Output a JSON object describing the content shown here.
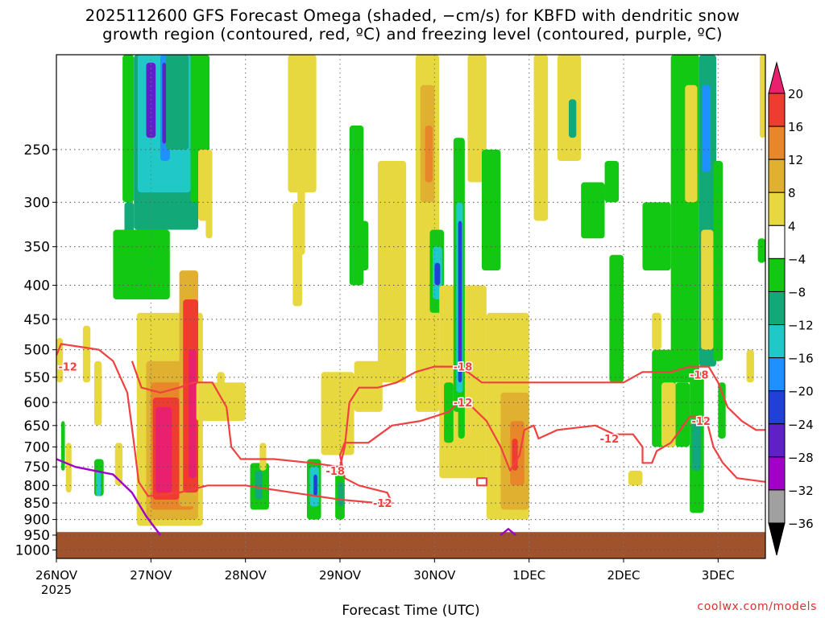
{
  "title": {
    "line1": "2025112600 GFS Forecast Omega (shaded, −cm/s) for KBFD with dendritic snow",
    "line2": "growth region (contoured, red, ºC) and freezing level (contoured, purple, ºC)"
  },
  "credit": "coolwx.com/models",
  "colors": {
    "ground": "#a0522d",
    "dgz_line": "#f04040",
    "freezing_line": "#a000c8",
    "grid": "#555555"
  },
  "chart_data": {
    "type": "heatmap",
    "xlabel": "Forecast Time (UTC)",
    "ylabel": "",
    "xlim_days_from_26nov": [
      0,
      7.5
    ],
    "ylim_hpa": [
      180,
      1030
    ],
    "y_ticks": [
      "250",
      "300",
      "350",
      "400",
      "450",
      "500",
      "550",
      "600",
      "650",
      "700",
      "750",
      "800",
      "850",
      "900",
      "950",
      "1000"
    ],
    "x_ticks": [
      {
        "label": "26NOV",
        "day": 0,
        "sub": "2025"
      },
      {
        "label": "27NOV",
        "day": 1
      },
      {
        "label": "28NOV",
        "day": 2
      },
      {
        "label": "29NOV",
        "day": 3
      },
      {
        "label": "30NOV",
        "day": 4
      },
      {
        "label": "1DEC",
        "day": 5
      },
      {
        "label": "2DEC",
        "day": 6
      },
      {
        "label": "3DEC",
        "day": 7
      }
    ],
    "colorbar": {
      "levels": [
        "20",
        "16",
        "12",
        "8",
        "4",
        "−4",
        "−8",
        "−12",
        "−16",
        "−20",
        "−24",
        "−28",
        "−32",
        "−36"
      ],
      "colors": [
        "#e8206e",
        "#ee3c30",
        "#e8872a",
        "#e0b030",
        "#e8d840",
        "#ffffff",
        "#12c812",
        "#12a878",
        "#20c8c8",
        "#1e90ff",
        "#2040d8",
        "#6020c8",
        "#a000c8",
        "#a0a0a0",
        "#000000"
      ]
    },
    "ground_level_hpa": 940,
    "omega_cells": [
      {
        "x0": 0.0,
        "x1": 0.07,
        "p0": 480,
        "p1": 560,
        "color": "#e8d840"
      },
      {
        "x0": 0.05,
        "x1": 0.09,
        "p0": 640,
        "p1": 760,
        "color": "#12c812"
      },
      {
        "x0": 0.1,
        "x1": 0.16,
        "p0": 690,
        "p1": 820,
        "color": "#e8d840"
      },
      {
        "x0": 0.28,
        "x1": 0.36,
        "p0": 460,
        "p1": 560,
        "color": "#e8d840"
      },
      {
        "x0": 0.4,
        "x1": 0.5,
        "p0": 730,
        "p1": 830,
        "color": "#12c812"
      },
      {
        "x0": 0.42,
        "x1": 0.47,
        "p0": 760,
        "p1": 830,
        "color": "#20c8c8"
      },
      {
        "x0": 0.4,
        "x1": 0.48,
        "p0": 520,
        "p1": 650,
        "color": "#e8d840"
      },
      {
        "x0": 0.62,
        "x1": 0.7,
        "p0": 690,
        "p1": 800,
        "color": "#e8d840"
      },
      {
        "x0": 0.7,
        "x1": 0.82,
        "p0": 180,
        "p1": 300,
        "color": "#12c812"
      },
      {
        "x0": 0.72,
        "x1": 0.82,
        "p0": 300,
        "p1": 350,
        "color": "#12a878"
      },
      {
        "x0": 0.82,
        "x1": 1.5,
        "p0": 180,
        "p1": 330,
        "color": "#12a878"
      },
      {
        "x0": 0.86,
        "x1": 1.42,
        "p0": 180,
        "p1": 290,
        "color": "#20c8c8"
      },
      {
        "x0": 0.95,
        "x1": 1.05,
        "p0": 185,
        "p1": 240,
        "color": "#6020c8"
      },
      {
        "x0": 1.1,
        "x1": 1.2,
        "p0": 180,
        "p1": 260,
        "color": "#1e90ff"
      },
      {
        "x0": 1.12,
        "x1": 1.16,
        "p0": 185,
        "p1": 245,
        "color": "#6020c8"
      },
      {
        "x0": 1.16,
        "x1": 1.4,
        "p0": 180,
        "p1": 250,
        "color": "#12a878"
      },
      {
        "x0": 0.6,
        "x1": 1.2,
        "p0": 330,
        "p1": 420,
        "color": "#12c812"
      },
      {
        "x0": 1.42,
        "x1": 1.62,
        "p0": 180,
        "p1": 300,
        "color": "#12c812"
      },
      {
        "x0": 1.5,
        "x1": 1.62,
        "p0": 250,
        "p1": 320,
        "color": "#e8d840"
      },
      {
        "x0": 0.85,
        "x1": 1.55,
        "p0": 440,
        "p1": 920,
        "color": "#e8d840"
      },
      {
        "x0": 0.95,
        "x1": 1.5,
        "p0": 520,
        "p1": 900,
        "color": "#e0b030"
      },
      {
        "x0": 1.0,
        "x1": 1.45,
        "p0": 560,
        "p1": 870,
        "color": "#e8872a"
      },
      {
        "x0": 1.02,
        "x1": 1.3,
        "p0": 590,
        "p1": 840,
        "color": "#ee3c30"
      },
      {
        "x0": 1.05,
        "x1": 1.22,
        "p0": 610,
        "p1": 820,
        "color": "#e8206e"
      },
      {
        "x0": 1.3,
        "x1": 1.5,
        "p0": 380,
        "p1": 860,
        "color": "#e0b030"
      },
      {
        "x0": 1.34,
        "x1": 1.5,
        "p0": 420,
        "p1": 820,
        "color": "#ee3c30"
      },
      {
        "x0": 1.4,
        "x1": 1.48,
        "p0": 500,
        "p1": 780,
        "color": "#e8206e"
      },
      {
        "x0": 1.48,
        "x1": 2.0,
        "p0": 560,
        "p1": 640,
        "color": "#e8d840"
      },
      {
        "x0": 1.58,
        "x1": 1.65,
        "p0": 250,
        "p1": 340,
        "color": "#e8d840"
      },
      {
        "x0": 1.7,
        "x1": 1.78,
        "p0": 540,
        "p1": 640,
        "color": "#e8d840"
      },
      {
        "x0": 2.05,
        "x1": 2.25,
        "p0": 740,
        "p1": 870,
        "color": "#12c812"
      },
      {
        "x0": 2.1,
        "x1": 2.18,
        "p0": 760,
        "p1": 840,
        "color": "#12a878"
      },
      {
        "x0": 2.15,
        "x1": 2.22,
        "p0": 690,
        "p1": 760,
        "color": "#e8d840"
      },
      {
        "x0": 2.45,
        "x1": 2.75,
        "p0": 180,
        "p1": 290,
        "color": "#e8d840"
      },
      {
        "x0": 2.5,
        "x1": 2.6,
        "p0": 300,
        "p1": 430,
        "color": "#e8d840"
      },
      {
        "x0": 2.55,
        "x1": 2.63,
        "p0": 260,
        "p1": 360,
        "color": "#e8d840"
      },
      {
        "x0": 2.65,
        "x1": 2.8,
        "p0": 730,
        "p1": 900,
        "color": "#12c812"
      },
      {
        "x0": 2.68,
        "x1": 2.78,
        "p0": 750,
        "p1": 860,
        "color": "#20c8c8"
      },
      {
        "x0": 2.72,
        "x1": 2.76,
        "p0": 770,
        "p1": 830,
        "color": "#2040d8"
      },
      {
        "x0": 2.8,
        "x1": 3.15,
        "p0": 540,
        "p1": 720,
        "color": "#e8d840"
      },
      {
        "x0": 2.95,
        "x1": 3.05,
        "p0": 760,
        "p1": 900,
        "color": "#12c812"
      },
      {
        "x0": 2.98,
        "x1": 3.04,
        "p0": 790,
        "p1": 860,
        "color": "#12a878"
      },
      {
        "x0": 3.1,
        "x1": 3.25,
        "p0": 230,
        "p1": 400,
        "color": "#12c812"
      },
      {
        "x0": 3.2,
        "x1": 3.3,
        "p0": 320,
        "p1": 380,
        "color": "#12c812"
      },
      {
        "x0": 3.15,
        "x1": 3.45,
        "p0": 520,
        "p1": 620,
        "color": "#e8d840"
      },
      {
        "x0": 3.4,
        "x1": 3.7,
        "p0": 260,
        "p1": 560,
        "color": "#e8d840"
      },
      {
        "x0": 3.8,
        "x1": 4.05,
        "p0": 180,
        "p1": 620,
        "color": "#e8d840"
      },
      {
        "x0": 3.85,
        "x1": 4.0,
        "p0": 200,
        "p1": 300,
        "color": "#e0b030"
      },
      {
        "x0": 3.9,
        "x1": 3.98,
        "p0": 230,
        "p1": 280,
        "color": "#e8872a"
      },
      {
        "x0": 3.95,
        "x1": 4.1,
        "p0": 330,
        "p1": 440,
        "color": "#12c812"
      },
      {
        "x0": 3.98,
        "x1": 4.08,
        "p0": 350,
        "p1": 420,
        "color": "#20c8c8"
      },
      {
        "x0": 4.0,
        "x1": 4.06,
        "p0": 370,
        "p1": 400,
        "color": "#2040d8"
      },
      {
        "x0": 4.05,
        "x1": 4.55,
        "p0": 400,
        "p1": 780,
        "color": "#e8d840"
      },
      {
        "x0": 4.1,
        "x1": 4.2,
        "p0": 560,
        "p1": 690,
        "color": "#12c812"
      },
      {
        "x0": 4.2,
        "x1": 4.32,
        "p0": 240,
        "p1": 620,
        "color": "#12c812"
      },
      {
        "x0": 4.23,
        "x1": 4.3,
        "p0": 300,
        "p1": 580,
        "color": "#20c8c8"
      },
      {
        "x0": 4.25,
        "x1": 4.29,
        "p0": 320,
        "p1": 560,
        "color": "#2040d8"
      },
      {
        "x0": 4.26,
        "x1": 4.28,
        "p0": 420,
        "p1": 520,
        "color": "#6020c8"
      },
      {
        "x0": 4.25,
        "x1": 4.32,
        "p0": 600,
        "p1": 680,
        "color": "#12c812"
      },
      {
        "x0": 4.35,
        "x1": 4.55,
        "p0": 180,
        "p1": 280,
        "color": "#e8d840"
      },
      {
        "x0": 4.5,
        "x1": 4.7,
        "p0": 250,
        "p1": 380,
        "color": "#12c812"
      },
      {
        "x0": 4.55,
        "x1": 5.0,
        "p0": 440,
        "p1": 900,
        "color": "#e8d840"
      },
      {
        "x0": 4.7,
        "x1": 5.0,
        "p0": 580,
        "p1": 870,
        "color": "#e0b030"
      },
      {
        "x0": 4.8,
        "x1": 4.95,
        "p0": 640,
        "p1": 800,
        "color": "#e8872a"
      },
      {
        "x0": 4.82,
        "x1": 4.88,
        "p0": 680,
        "p1": 760,
        "color": "#ee3c30"
      },
      {
        "x0": 5.05,
        "x1": 5.2,
        "p0": 180,
        "p1": 320,
        "color": "#e8d840"
      },
      {
        "x0": 5.3,
        "x1": 5.55,
        "p0": 180,
        "p1": 260,
        "color": "#e8d840"
      },
      {
        "x0": 5.42,
        "x1": 5.5,
        "p0": 210,
        "p1": 240,
        "color": "#12a878"
      },
      {
        "x0": 5.55,
        "x1": 5.8,
        "p0": 280,
        "p1": 340,
        "color": "#12c812"
      },
      {
        "x0": 5.8,
        "x1": 5.95,
        "p0": 260,
        "p1": 300,
        "color": "#12c812"
      },
      {
        "x0": 5.85,
        "x1": 6.0,
        "p0": 360,
        "p1": 560,
        "color": "#12c812"
      },
      {
        "x0": 6.05,
        "x1": 6.2,
        "p0": 760,
        "p1": 800,
        "color": "#e8d840"
      },
      {
        "x0": 6.2,
        "x1": 6.5,
        "p0": 300,
        "p1": 380,
        "color": "#12c812"
      },
      {
        "x0": 6.3,
        "x1": 6.55,
        "p0": 500,
        "p1": 700,
        "color": "#12c812"
      },
      {
        "x0": 6.3,
        "x1": 6.4,
        "p0": 440,
        "p1": 500,
        "color": "#e8d840"
      },
      {
        "x0": 6.4,
        "x1": 6.55,
        "p0": 560,
        "p1": 700,
        "color": "#e8d840"
      },
      {
        "x0": 6.5,
        "x1": 6.8,
        "p0": 180,
        "p1": 560,
        "color": "#12c812"
      },
      {
        "x0": 6.55,
        "x1": 6.7,
        "p0": 560,
        "p1": 700,
        "color": "#12c812"
      },
      {
        "x0": 6.65,
        "x1": 6.78,
        "p0": 200,
        "p1": 300,
        "color": "#e8d840"
      },
      {
        "x0": 6.7,
        "x1": 6.85,
        "p0": 540,
        "p1": 880,
        "color": "#12c812"
      },
      {
        "x0": 6.72,
        "x1": 6.82,
        "p0": 640,
        "p1": 760,
        "color": "#12a878"
      },
      {
        "x0": 6.8,
        "x1": 6.98,
        "p0": 180,
        "p1": 530,
        "color": "#12a878"
      },
      {
        "x0": 6.83,
        "x1": 6.92,
        "p0": 200,
        "p1": 270,
        "color": "#1e90ff"
      },
      {
        "x0": 6.82,
        "x1": 6.95,
        "p0": 330,
        "p1": 500,
        "color": "#e8d840"
      },
      {
        "x0": 6.95,
        "x1": 7.05,
        "p0": 260,
        "p1": 520,
        "color": "#12c812"
      },
      {
        "x0": 7.0,
        "x1": 7.08,
        "p0": 560,
        "p1": 680,
        "color": "#12c812"
      },
      {
        "x0": 7.3,
        "x1": 7.38,
        "p0": 500,
        "p1": 560,
        "color": "#e8d840"
      },
      {
        "x0": 7.44,
        "x1": 7.5,
        "p0": 180,
        "p1": 240,
        "color": "#e8d840"
      },
      {
        "x0": 7.42,
        "x1": 7.5,
        "p0": 340,
        "p1": 370,
        "color": "#12c812"
      }
    ],
    "dgz_contours": [
      {
        "level": "-12",
        "points": [
          [
            0,
            510
          ],
          [
            0.05,
            490
          ],
          [
            0.25,
            495
          ],
          [
            0.45,
            500
          ],
          [
            0.6,
            520
          ],
          [
            0.75,
            580
          ],
          [
            0.82,
            690
          ],
          [
            0.87,
            790
          ],
          [
            0.97,
            830
          ],
          [
            1.3,
            820
          ],
          [
            1.6,
            800
          ],
          [
            2.0,
            800
          ],
          [
            2.5,
            820
          ],
          [
            3.0,
            840
          ],
          [
            3.4,
            850
          ],
          [
            3.55,
            850
          ],
          [
            3.5,
            820
          ],
          [
            3.2,
            800
          ],
          [
            3.05,
            780
          ],
          [
            3.0,
            720
          ],
          [
            3.05,
            690
          ],
          [
            3.3,
            690
          ],
          [
            3.55,
            650
          ],
          [
            3.85,
            640
          ],
          [
            4.0,
            630
          ],
          [
            4.15,
            620
          ],
          [
            4.25,
            600
          ],
          [
            4.4,
            610
          ],
          [
            4.55,
            640
          ],
          [
            4.7,
            700
          ],
          [
            4.8,
            760
          ],
          [
            4.9,
            720
          ],
          [
            4.95,
            660
          ],
          [
            5.05,
            650
          ],
          [
            5.1,
            680
          ],
          [
            5.3,
            660
          ],
          [
            5.7,
            650
          ],
          [
            5.9,
            670
          ],
          [
            6.1,
            670
          ],
          [
            6.2,
            700
          ],
          [
            6.2,
            740
          ],
          [
            6.3,
            740
          ],
          [
            6.35,
            710
          ],
          [
            6.5,
            690
          ],
          [
            6.6,
            660
          ],
          [
            6.7,
            630
          ],
          [
            6.82,
            630
          ],
          [
            6.88,
            640
          ],
          [
            6.95,
            700
          ],
          [
            7.05,
            740
          ],
          [
            7.2,
            780
          ],
          [
            7.5,
            790
          ]
        ]
      },
      {
        "level": "-18",
        "points": [
          [
            0.8,
            520
          ],
          [
            0.9,
            570
          ],
          [
            1.1,
            580
          ],
          [
            1.3,
            570
          ],
          [
            1.45,
            560
          ],
          [
            1.65,
            560
          ],
          [
            1.8,
            610
          ],
          [
            1.85,
            700
          ],
          [
            1.95,
            730
          ],
          [
            2.3,
            730
          ],
          [
            2.7,
            740
          ],
          [
            3.0,
            750
          ],
          [
            3.05,
            700
          ],
          [
            3.1,
            600
          ],
          [
            3.2,
            570
          ],
          [
            3.4,
            570
          ],
          [
            3.6,
            560
          ],
          [
            3.8,
            540
          ],
          [
            4.0,
            530
          ],
          [
            4.2,
            530
          ],
          [
            4.35,
            540
          ],
          [
            4.5,
            560
          ],
          [
            4.7,
            560
          ],
          [
            5.0,
            560
          ],
          [
            5.5,
            560
          ],
          [
            5.8,
            560
          ],
          [
            6.0,
            560
          ],
          [
            6.2,
            540
          ],
          [
            6.5,
            540
          ],
          [
            6.7,
            530
          ],
          [
            6.9,
            530
          ],
          [
            7.0,
            560
          ],
          [
            7.1,
            610
          ],
          [
            7.25,
            640
          ],
          [
            7.4,
            660
          ],
          [
            7.5,
            660
          ]
        ]
      },
      {
        "level": "",
        "points": [
          [
            4.45,
            780
          ],
          [
            4.55,
            780
          ],
          [
            4.55,
            800
          ],
          [
            4.45,
            800
          ],
          [
            4.45,
            780
          ]
        ]
      }
    ],
    "dgz_labels": [
      {
        "text": "-12",
        "day": 0.12,
        "p": 530
      },
      {
        "text": "-12",
        "day": 3.45,
        "p": 850
      },
      {
        "text": "-18",
        "day": 2.95,
        "p": 760
      },
      {
        "text": "-18",
        "day": 4.3,
        "p": 530
      },
      {
        "text": "-12",
        "day": 4.3,
        "p": 600
      },
      {
        "text": "-12",
        "day": 5.85,
        "p": 680
      },
      {
        "text": "-18",
        "day": 6.8,
        "p": 545
      },
      {
        "text": "-12",
        "day": 6.82,
        "p": 640
      }
    ],
    "freezing_contours": [
      {
        "points": [
          [
            0,
            730
          ],
          [
            0.2,
            750
          ],
          [
            0.6,
            770
          ],
          [
            0.8,
            820
          ],
          [
            0.95,
            890
          ],
          [
            1.1,
            950
          ]
        ]
      },
      {
        "points": [
          [
            4.7,
            950
          ],
          [
            4.78,
            930
          ],
          [
            4.86,
            950
          ]
        ]
      }
    ]
  }
}
